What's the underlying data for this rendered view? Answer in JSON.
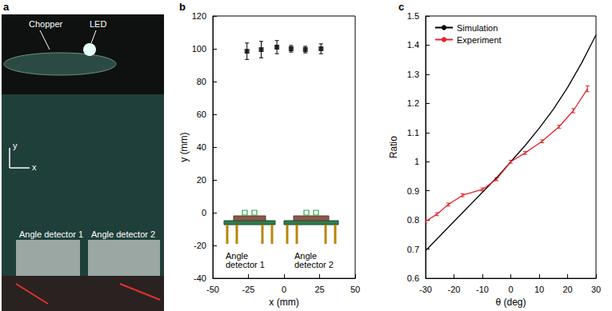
{
  "panel_labels": [
    "a",
    "b",
    "c"
  ],
  "photo": {
    "labels": [
      "Chopper",
      "LED",
      "y",
      "x",
      "Angle detector 1",
      "Angle detector 2"
    ]
  },
  "chart_data": [
    {
      "type": "scatter",
      "xlabel": "x (mm)",
      "ylabel": "y (mm)",
      "xlim": [
        -50,
        50
      ],
      "xticks": [
        -50,
        -25,
        0,
        25,
        50
      ],
      "ylim": [
        -40,
        120
      ],
      "yticks": [
        -40,
        -20,
        0,
        20,
        40,
        60,
        80,
        100,
        120
      ],
      "grid": false,
      "annotations": [
        "Angle detector 1",
        "Angle detector 2"
      ],
      "series": [
        {
          "color": "#000000",
          "marker": "square",
          "x": [
            -26,
            -16,
            -5,
            5,
            15,
            26
          ],
          "values": [
            98.5,
            99.5,
            101,
            100,
            99.5,
            100
          ],
          "errors": [
            5,
            5,
            4,
            2,
            2,
            3
          ]
        }
      ]
    },
    {
      "type": "line",
      "xlabel": "θ (deg)",
      "ylabel": "Ratio",
      "xlim": [
        -30,
        30
      ],
      "xticks": [
        -30,
        -20,
        -10,
        0,
        10,
        20,
        30
      ],
      "ylim": [
        0.6,
        1.5
      ],
      "yticks": [
        0.6,
        0.7,
        0.8,
        0.9,
        1,
        1.1,
        1.2,
        1.3,
        1.4,
        1.5
      ],
      "grid": false,
      "legend": "upper left",
      "series": [
        {
          "name": "Simulation",
          "color": "#000000",
          "line_style": "solid",
          "x": [
            -30,
            -25,
            -20,
            -15,
            -10,
            -5,
            0,
            5,
            10,
            15,
            20,
            25,
            30
          ],
          "values": [
            0.695,
            0.745,
            0.795,
            0.845,
            0.895,
            0.945,
            1.0,
            1.055,
            1.115,
            1.18,
            1.255,
            1.34,
            1.435
          ]
        },
        {
          "name": "Experiment",
          "color": "#e3242b",
          "line_style": "solid",
          "x": [
            -30,
            -26,
            -22,
            -17,
            -10,
            -5,
            0,
            5,
            11,
            17,
            22,
            27
          ],
          "values": [
            0.795,
            0.82,
            0.853,
            0.885,
            0.905,
            0.94,
            1.0,
            1.03,
            1.07,
            1.12,
            1.175,
            1.25
          ],
          "errors": [
            0.005,
            0.005,
            0.005,
            0.005,
            0.005,
            0.005,
            0.005,
            0.005,
            0.005,
            0.005,
            0.007,
            0.01
          ]
        }
      ]
    }
  ]
}
